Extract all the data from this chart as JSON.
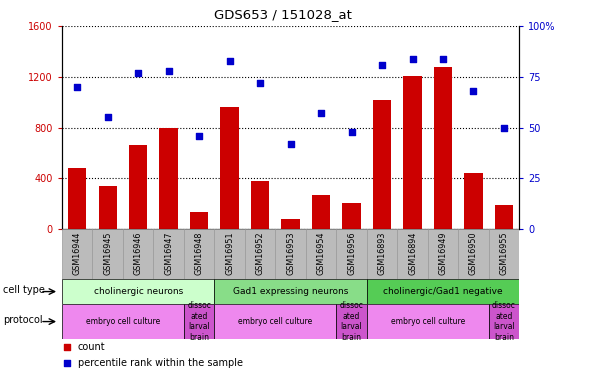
{
  "title": "GDS653 / 151028_at",
  "samples": [
    "GSM16944",
    "GSM16945",
    "GSM16946",
    "GSM16947",
    "GSM16948",
    "GSM16951",
    "GSM16952",
    "GSM16953",
    "GSM16954",
    "GSM16956",
    "GSM16893",
    "GSM16894",
    "GSM16949",
    "GSM16950",
    "GSM16955"
  ],
  "counts": [
    480,
    340,
    660,
    800,
    130,
    960,
    380,
    80,
    270,
    200,
    1020,
    1210,
    1280,
    440,
    190
  ],
  "percentile_ranks": [
    70,
    55,
    77,
    78,
    46,
    83,
    72,
    42,
    57,
    48,
    81,
    84,
    84,
    68,
    50
  ],
  "cell_types": [
    {
      "label": "cholinergic neurons",
      "start": 0,
      "end": 5,
      "color": "#ccffcc"
    },
    {
      "label": "Gad1 expressing neurons",
      "start": 5,
      "end": 10,
      "color": "#88dd88"
    },
    {
      "label": "cholinergic/Gad1 negative",
      "start": 10,
      "end": 15,
      "color": "#55cc55"
    }
  ],
  "protocols_main": [
    {
      "label": "embryo cell culture",
      "start": 0,
      "end": 4,
      "color": "#ee88ee"
    },
    {
      "label": "dissoc\nated\nlarval\nbrain",
      "start": 4,
      "end": 5,
      "color": "#cc55cc"
    },
    {
      "label": "embryo cell culture",
      "start": 5,
      "end": 9,
      "color": "#ee88ee"
    },
    {
      "label": "dissoc\nated\nlarval\nbrain",
      "start": 9,
      "end": 10,
      "color": "#cc55cc"
    },
    {
      "label": "embryo cell culture",
      "start": 10,
      "end": 14,
      "color": "#ee88ee"
    },
    {
      "label": "dissoc\nated\nlarval\nbrain",
      "start": 14,
      "end": 15,
      "color": "#cc55cc"
    }
  ],
  "bar_color": "#cc0000",
  "dot_color": "#0000cc",
  "ylim_left": [
    0,
    1600
  ],
  "ylim_right": [
    0,
    100
  ],
  "yticks_left": [
    0,
    400,
    800,
    1200,
    1600
  ],
  "yticks_right": [
    0,
    25,
    50,
    75,
    100
  ],
  "tick_box_color": "#bbbbbb",
  "tick_box_edge_color": "#999999"
}
